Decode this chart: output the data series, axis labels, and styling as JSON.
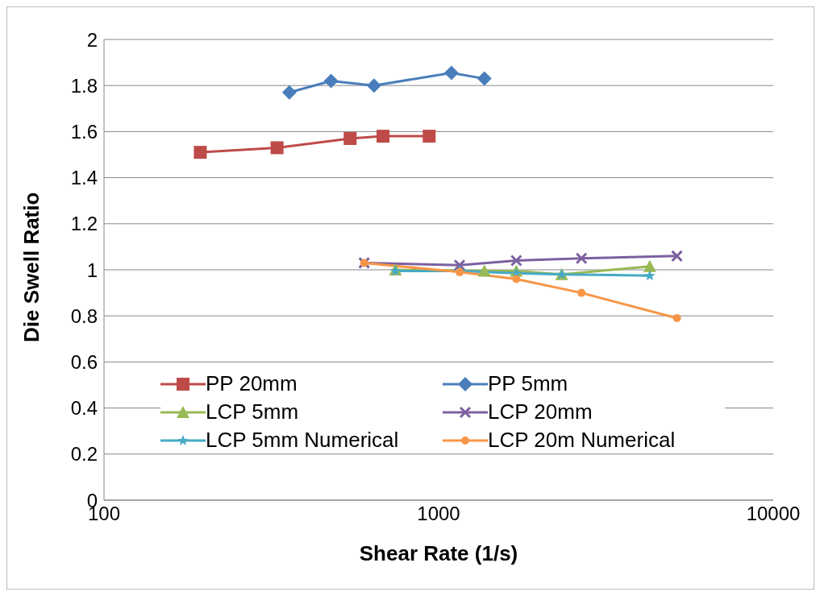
{
  "chart_data": {
    "type": "line",
    "xlabel": "Shear Rate (1/s)",
    "ylabel": "Die Swell Ratio",
    "log": "x",
    "xlim": [
      100,
      10000
    ],
    "xticks": [
      100,
      1000,
      10000
    ],
    "ylim": [
      0,
      2
    ],
    "yticks": [
      0,
      0.2,
      0.4,
      0.6,
      0.8,
      1,
      1.2,
      1.4,
      1.6,
      1.8,
      2
    ],
    "grid": "y",
    "legend": "bottom",
    "series": [
      {
        "name": "PP 20mm",
        "color": "#be4b48",
        "marker": "square",
        "x": [
          194,
          329,
          544,
          682,
          937
        ],
        "values": [
          1.51,
          1.53,
          1.57,
          1.58,
          1.58
        ]
      },
      {
        "name": "PP 5mm",
        "color": "#4a7ebb",
        "marker": "diamond",
        "x": [
          358,
          477,
          641,
          1092,
          1370
        ],
        "values": [
          1.77,
          1.82,
          1.8,
          1.855,
          1.83
        ]
      },
      {
        "name": "LCP 5mm",
        "color": "#98b954",
        "marker": "triangle",
        "x": [
          743,
          1370,
          1707,
          2333,
          4276
        ],
        "values": [
          1.0,
          0.995,
          0.995,
          0.98,
          1.015
        ]
      },
      {
        "name": "LCP 20mm",
        "color": "#7d60a0",
        "marker": "cross",
        "x": [
          599,
          1155,
          1707,
          2672,
          5155
        ],
        "values": [
          1.03,
          1.02,
          1.04,
          1.05,
          1.06
        ]
      },
      {
        "name": "LCP 5mm Numerical",
        "color": "#46aac5",
        "marker": "star",
        "x": [
          743,
          1155,
          1707,
          2333,
          4276
        ],
        "values": [
          0.995,
          0.995,
          0.985,
          0.98,
          0.975
        ]
      },
      {
        "name": "LCP 20m Numerical",
        "color": "#f79646",
        "marker": "circle",
        "x": [
          599,
          1155,
          1707,
          2672,
          5155
        ],
        "values": [
          1.03,
          0.99,
          0.96,
          0.9,
          0.79
        ]
      }
    ]
  }
}
